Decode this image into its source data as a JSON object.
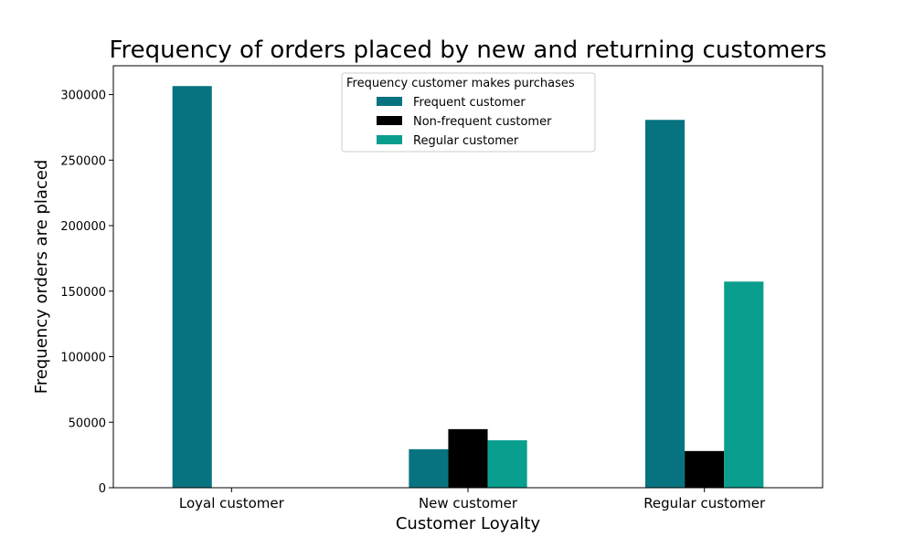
{
  "chart_data": {
    "type": "bar",
    "title": "Frequency of orders placed by new and returning customers",
    "xlabel": "Customer Loyalty",
    "ylabel": "Frequency orders are placed",
    "categories": [
      "Loyal customer",
      "New customer",
      "Regular customer"
    ],
    "series": [
      {
        "name": "Frequent customer",
        "color": "#087380",
        "values": [
          306500,
          29400,
          280700
        ]
      },
      {
        "name": "Non-frequent customer",
        "color": "#000000",
        "values": [
          0,
          44700,
          28000
        ]
      },
      {
        "name": "Regular customer",
        "color": "#0a9e8e",
        "values": [
          0,
          36200,
          157300
        ]
      }
    ],
    "ylim": [
      0,
      322000
    ],
    "yticks": [
      0,
      50000,
      100000,
      150000,
      200000,
      250000,
      300000
    ],
    "legend": {
      "title": "Frequency customer makes purchases",
      "placement": "top-center"
    },
    "grid": false
  }
}
